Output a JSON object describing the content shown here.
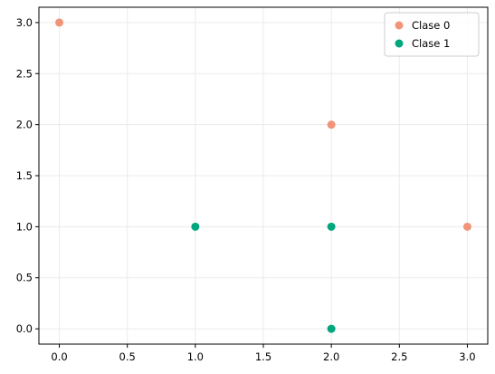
{
  "chart_data": {
    "type": "scatter",
    "title": "",
    "xlabel": "",
    "ylabel": "",
    "xlim": [
      -0.15,
      3.15
    ],
    "ylim": [
      -0.15,
      3.15
    ],
    "xticks": [
      "0.0",
      "0.5",
      "1.0",
      "1.5",
      "2.0",
      "2.5",
      "3.0"
    ],
    "yticks": [
      "0.0",
      "0.5",
      "1.0",
      "1.5",
      "2.0",
      "2.5",
      "3.0"
    ],
    "grid": true,
    "legend_position": "top-right",
    "series": [
      {
        "name": "Clase 0",
        "color": "#f0957a",
        "points": [
          [
            0,
            3
          ],
          [
            2,
            2
          ],
          [
            3,
            1
          ]
        ]
      },
      {
        "name": "Clase 1",
        "color": "#00a67e",
        "points": [
          [
            1,
            1
          ],
          [
            2,
            1
          ],
          [
            2,
            0
          ]
        ]
      }
    ]
  }
}
